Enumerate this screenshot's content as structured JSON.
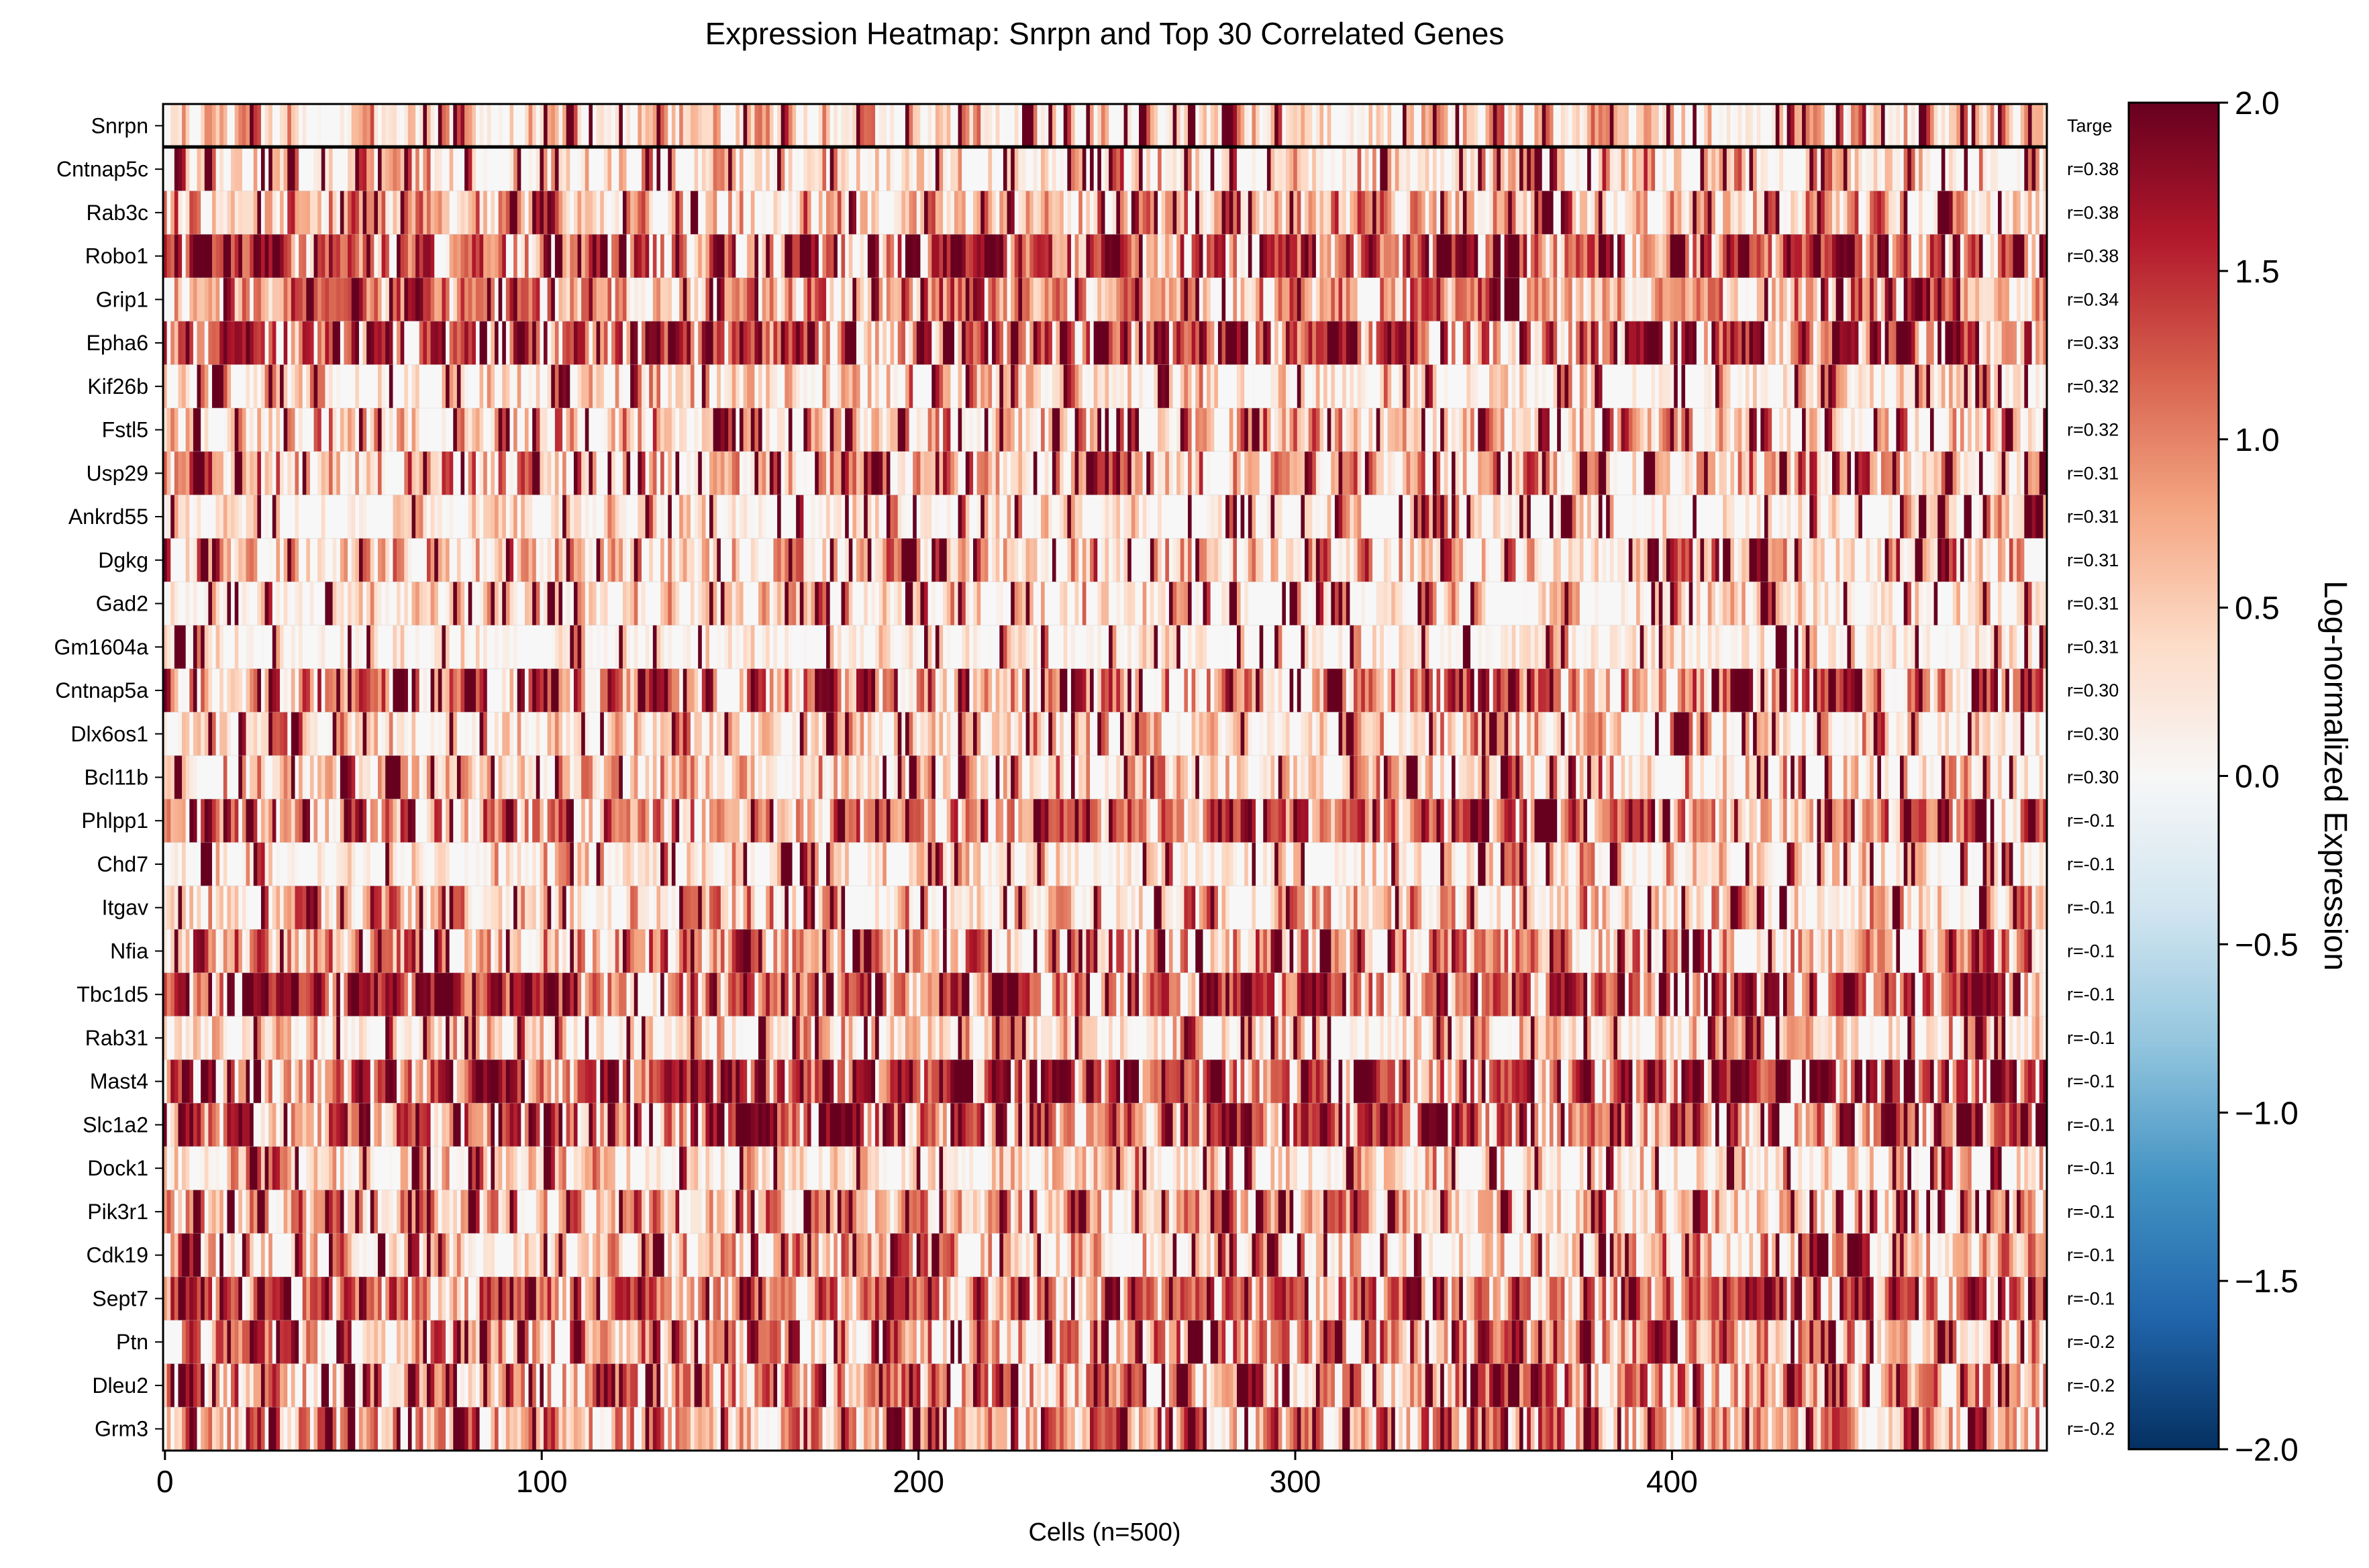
{
  "chart_data": {
    "type": "heatmap",
    "title": "Expression Heatmap: Snrpn and Top 30 Correlated Genes",
    "xlabel": "Cells (n=500)",
    "colorbar_label": "Log-normalized Expression",
    "n_cells": 500,
    "x_ticks": [
      0,
      100,
      200,
      300,
      400
    ],
    "x_tick_labels": [
      "0",
      "100",
      "200",
      "300",
      "400"
    ],
    "value_range": [
      -2.0,
      2.0
    ],
    "colorbar_ticks": [
      2.0,
      1.5,
      1.0,
      0.5,
      0.0,
      -0.5,
      -1.0,
      -1.5,
      -2.0
    ],
    "colorbar_tick_labels": [
      "2.0",
      "1.5",
      "1.0",
      "0.5",
      "0.0",
      "−0.5",
      "−1.0",
      "−1.5",
      "−2.0"
    ],
    "colormap": "RdBu_r",
    "colormap_stops": [
      "#053061",
      "#2166ac",
      "#4393c3",
      "#92c5de",
      "#d1e5f0",
      "#f7f7f7",
      "#fddbc7",
      "#f4a582",
      "#d6604d",
      "#b2182b",
      "#67001f"
    ],
    "genes": [
      {
        "name": "Snrpn",
        "corr_label": "Targe",
        "level": 0.45,
        "variability": 0.7
      },
      {
        "name": "Cntnap5c",
        "corr_label": "r=0.38",
        "level": 0.25,
        "variability": 0.9
      },
      {
        "name": "Rab3c",
        "corr_label": "r=0.38",
        "level": 0.7,
        "variability": 0.8
      },
      {
        "name": "Robo1",
        "corr_label": "r=0.38",
        "level": 1.5,
        "variability": 0.8
      },
      {
        "name": "Grip1",
        "corr_label": "r=0.34",
        "level": 1.1,
        "variability": 0.8
      },
      {
        "name": "Epha6",
        "corr_label": "r=0.33",
        "level": 1.6,
        "variability": 0.7
      },
      {
        "name": "Kif26b",
        "corr_label": "r=0.32",
        "level": 0.25,
        "variability": 0.8
      },
      {
        "name": "Fstl5",
        "corr_label": "r=0.32",
        "level": 0.6,
        "variability": 0.9
      },
      {
        "name": "Usp29",
        "corr_label": "r=0.31",
        "level": 0.7,
        "variability": 0.9
      },
      {
        "name": "Ankrd55",
        "corr_label": "r=0.31",
        "level": 0.12,
        "variability": 0.6
      },
      {
        "name": "Dgkg",
        "corr_label": "r=0.31",
        "level": 0.55,
        "variability": 0.8
      },
      {
        "name": "Gad2",
        "corr_label": "r=0.31",
        "level": 0.25,
        "variability": 0.7
      },
      {
        "name": "Gm1604a",
        "corr_label": "r=0.31",
        "level": 0.12,
        "variability": 0.5
      },
      {
        "name": "Cntnap5a",
        "corr_label": "r=0.30",
        "level": 1.1,
        "variability": 1.0
      },
      {
        "name": "Dlx6os1",
        "corr_label": "r=0.30",
        "level": 0.3,
        "variability": 0.8
      },
      {
        "name": "Bcl11b",
        "corr_label": "r=0.30",
        "level": 0.45,
        "variability": 0.8
      },
      {
        "name": "Phlpp1",
        "corr_label": "r=-0.1",
        "level": 1.2,
        "variability": 0.7
      },
      {
        "name": "Chd7",
        "corr_label": "r=-0.1",
        "level": 0.25,
        "variability": 0.7
      },
      {
        "name": "Itgav",
        "corr_label": "r=-0.1",
        "level": 0.5,
        "variability": 0.8
      },
      {
        "name": "Nfia",
        "corr_label": "r=-0.1",
        "level": 1.0,
        "variability": 0.9
      },
      {
        "name": "Tbc1d5",
        "corr_label": "r=-0.1",
        "level": 1.35,
        "variability": 0.6
      },
      {
        "name": "Rab31",
        "corr_label": "r=-0.1",
        "level": 0.35,
        "variability": 0.8
      },
      {
        "name": "Mast4",
        "corr_label": "r=-0.1",
        "level": 1.6,
        "variability": 0.6
      },
      {
        "name": "Slc1a2",
        "corr_label": "r=-0.1",
        "level": 1.3,
        "variability": 0.8
      },
      {
        "name": "Dock1",
        "corr_label": "r=-0.1",
        "level": 0.3,
        "variability": 0.8
      },
      {
        "name": "Pik3r1",
        "corr_label": "r=-0.1",
        "level": 0.65,
        "variability": 0.8
      },
      {
        "name": "Cdk19",
        "corr_label": "r=-0.1",
        "level": 0.6,
        "variability": 0.8
      },
      {
        "name": "Sept7",
        "corr_label": "r=-0.1",
        "level": 1.3,
        "variability": 0.6
      },
      {
        "name": "Ptn",
        "corr_label": "r=-0.2",
        "level": 0.95,
        "variability": 0.9
      },
      {
        "name": "Dleu2",
        "corr_label": "r=-0.2",
        "level": 1.0,
        "variability": 0.8
      },
      {
        "name": "Grm3",
        "corr_label": "r=-0.2",
        "level": 1.05,
        "variability": 0.9
      }
    ],
    "value_note_seed": 12345
  }
}
